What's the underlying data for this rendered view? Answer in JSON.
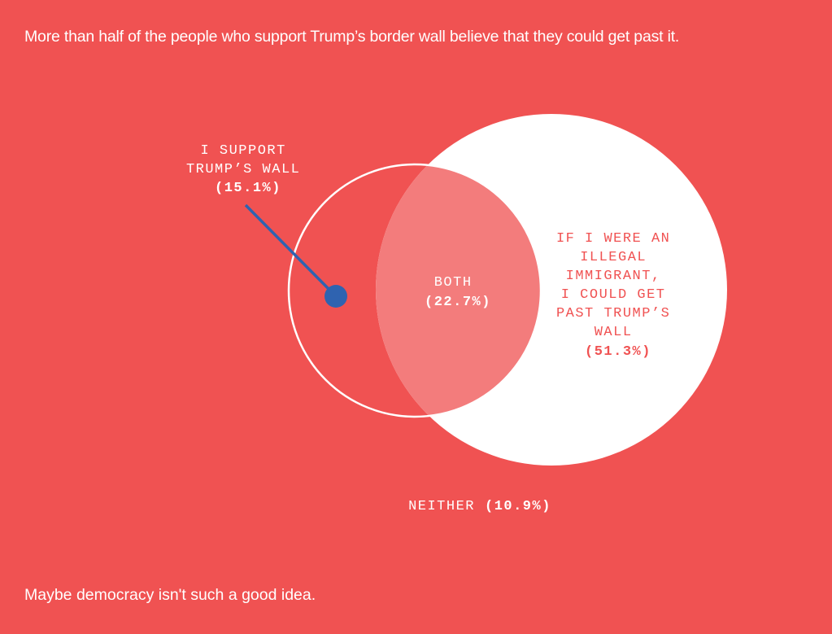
{
  "headline": "More than half of the people who support Trump’s border wall believe that they could get past it.",
  "footer": "Maybe democracy isn't such a good idea.",
  "colors": {
    "background": "#f05252",
    "white": "#ffffff",
    "overlap": "#f37c7c",
    "pointer": "#2f63b0"
  },
  "venn": {
    "left_set": {
      "lines": [
        "I SUPPORT",
        "TRUMP’S WALL"
      ],
      "value": "(15.1%)"
    },
    "overlap": {
      "label": "BOTH",
      "value": "(22.7%)"
    },
    "right_set": {
      "lines": [
        "IF I WERE AN",
        "ILLEGAL",
        "IMMIGRANT,",
        "I COULD GET",
        "PAST TRUMP’S",
        "WALL"
      ],
      "value": "(51.3%)"
    },
    "neither": {
      "label": "NEITHER",
      "value": "(10.9%)"
    }
  }
}
